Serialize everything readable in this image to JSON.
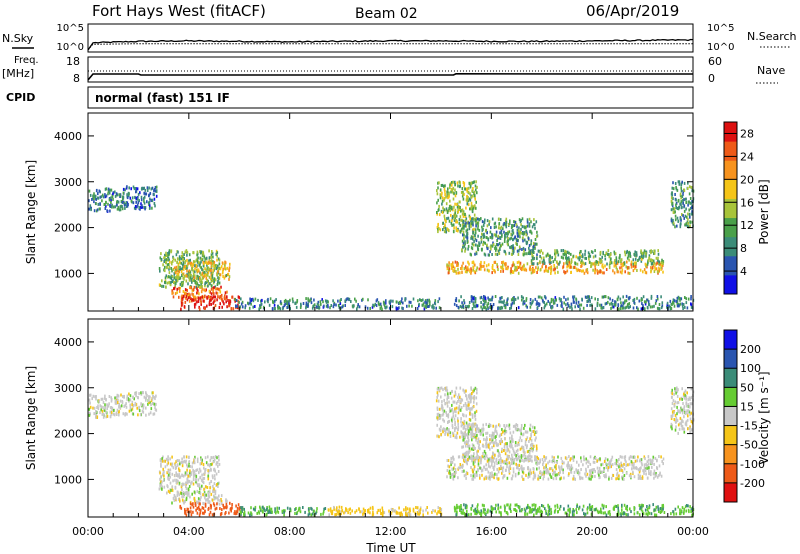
{
  "header": {
    "station": "Fort Hays West (fitACF)",
    "beam": "Beam 02",
    "date": "06/Apr/2019"
  },
  "side_labels": {
    "nsky": "N.Sky",
    "freq": "Freq.",
    "freq_unit": "[MHz]",
    "cpid": "CPID",
    "nsearch": "N.Search",
    "nave": "Nave"
  },
  "cpid_text": "normal (fast) 151 IF",
  "chart_data": [
    {
      "type": "line",
      "name": "noise",
      "left_ticks": [
        "10^5",
        "10^0"
      ],
      "right_ticks": [
        "10^5",
        "10^0"
      ],
      "x": [
        0,
        0.2,
        2,
        4,
        6,
        8,
        10,
        12,
        14,
        16,
        18,
        20,
        22,
        24
      ],
      "nsky_log10": [
        0.0,
        1.5,
        1.8,
        1.9,
        1.8,
        1.7,
        1.8,
        1.9,
        1.9,
        1.8,
        1.8,
        1.9,
        2.0,
        2.1
      ],
      "nsearch_log10": [
        0.0,
        1.2,
        1.3,
        1.3,
        1.3,
        1.3,
        1.3,
        1.3,
        1.3,
        1.3,
        1.3,
        1.3,
        1.3,
        1.3
      ]
    },
    {
      "type": "line",
      "name": "freq-nave",
      "left_ticks": [
        "18",
        "8"
      ],
      "right_ticks": [
        "60",
        "0"
      ],
      "x": [
        0,
        0.2,
        2,
        2.1,
        8,
        14.5,
        14.6,
        20,
        24
      ],
      "freq_mhz": [
        8.0,
        11.0,
        11.0,
        10.5,
        10.5,
        10.5,
        11.1,
        11.0,
        11.0
      ],
      "nave": [
        27,
        27,
        27,
        27,
        27,
        27,
        27,
        27,
        27
      ]
    },
    {
      "type": "heatmap",
      "name": "power",
      "ylabel": "Slant Range [km]",
      "yticks": [
        "4000",
        "3000",
        "2000",
        "1000"
      ],
      "ylim": [
        180,
        4500
      ],
      "colorbar_label": "Power [dB]",
      "colorbar_ticks": [
        "28",
        "24",
        "20",
        "16",
        "12",
        "8",
        "4"
      ],
      "colorbar_range": [
        0,
        30
      ],
      "patches": [
        {
          "t0": 0.0,
          "t1": 1.4,
          "r0": 2350,
          "r1": 2850,
          "value": 8
        },
        {
          "t0": 1.4,
          "t1": 2.7,
          "r0": 2400,
          "r1": 2900,
          "value": 6
        },
        {
          "t0": 2.8,
          "t1": 5.2,
          "r0": 700,
          "r1": 1500,
          "value": 12
        },
        {
          "t0": 3.4,
          "t1": 5.6,
          "r0": 850,
          "r1": 1250,
          "value": 18
        },
        {
          "t0": 3.3,
          "t1": 5.5,
          "r0": 450,
          "r1": 700,
          "value": 24
        },
        {
          "t0": 3.6,
          "t1": 6.0,
          "r0": 220,
          "r1": 500,
          "value": 28
        },
        {
          "t0": 5.8,
          "t1": 14.0,
          "r0": 220,
          "r1": 450,
          "value": 8
        },
        {
          "t0": 13.8,
          "t1": 15.4,
          "r0": 1900,
          "r1": 3000,
          "value": 14
        },
        {
          "t0": 14.8,
          "t1": 17.8,
          "r0": 1400,
          "r1": 2200,
          "value": 10
        },
        {
          "t0": 14.2,
          "t1": 22.8,
          "r0": 1000,
          "r1": 1250,
          "value": 20
        },
        {
          "t0": 17.5,
          "t1": 22.8,
          "r0": 1200,
          "r1": 1500,
          "value": 12
        },
        {
          "t0": 23.1,
          "t1": 24.0,
          "r0": 2000,
          "r1": 3000,
          "value": 10
        },
        {
          "t0": 14.5,
          "t1": 24.0,
          "r0": 220,
          "r1": 500,
          "value": 8
        }
      ]
    },
    {
      "type": "heatmap",
      "name": "velocity",
      "xlabel": "Time UT",
      "ylabel": "Slant Range [km]",
      "yticks": [
        "4000",
        "3000",
        "2000",
        "1000"
      ],
      "ylim": [
        180,
        4500
      ],
      "xticks": [
        "00:00",
        "04:00",
        "08:00",
        "12:00",
        "16:00",
        "20:00",
        "00:00"
      ],
      "xlim": [
        0,
        24
      ],
      "colorbar_label": "Velocity [m s⁻¹]",
      "colorbar_ticks": [
        "200",
        "100",
        "50",
        "15",
        "-15",
        "-50",
        "-100",
        "-200"
      ],
      "patches": [
        {
          "t0": 0.0,
          "t1": 1.4,
          "r0": 2350,
          "r1": 2850,
          "value": 0
        },
        {
          "t0": 1.4,
          "t1": 2.7,
          "r0": 2400,
          "r1": 2900,
          "value": 0
        },
        {
          "t0": 2.8,
          "t1": 5.2,
          "r0": 700,
          "r1": 1500,
          "value": 0
        },
        {
          "t0": 3.3,
          "t1": 5.5,
          "r0": 450,
          "r1": 700,
          "value": 0
        },
        {
          "t0": 3.6,
          "t1": 6.0,
          "r0": 220,
          "r1": 480,
          "value": -150
        },
        {
          "t0": 6.0,
          "t1": 9.5,
          "r0": 220,
          "r1": 400,
          "value": 50
        },
        {
          "t0": 9.5,
          "t1": 14.0,
          "r0": 220,
          "r1": 400,
          "value": -30
        },
        {
          "t0": 13.8,
          "t1": 15.4,
          "r0": 1900,
          "r1": 3000,
          "value": 0
        },
        {
          "t0": 14.8,
          "t1": 17.8,
          "r0": 1400,
          "r1": 2200,
          "value": 0
        },
        {
          "t0": 14.2,
          "t1": 22.8,
          "r0": 1000,
          "r1": 1500,
          "value": 0
        },
        {
          "t0": 23.1,
          "t1": 24.0,
          "r0": 2000,
          "r1": 3000,
          "value": 0
        },
        {
          "t0": 14.5,
          "t1": 24.0,
          "r0": 220,
          "r1": 450,
          "value": 40
        }
      ]
    }
  ],
  "colors": {
    "power_scale": [
      "#1010e6",
      "#2a55b0",
      "#3b8c78",
      "#4aa04a",
      "#a8c43a",
      "#f5c518",
      "#f7931e",
      "#ee5a18",
      "#dd1111"
    ],
    "velocity_scale": [
      "#e01010",
      "#ee5a18",
      "#f7931e",
      "#f5c518",
      "#c8c8c8",
      "#66cc33",
      "#3b8c78",
      "#2a55b0",
      "#1010e6"
    ]
  }
}
